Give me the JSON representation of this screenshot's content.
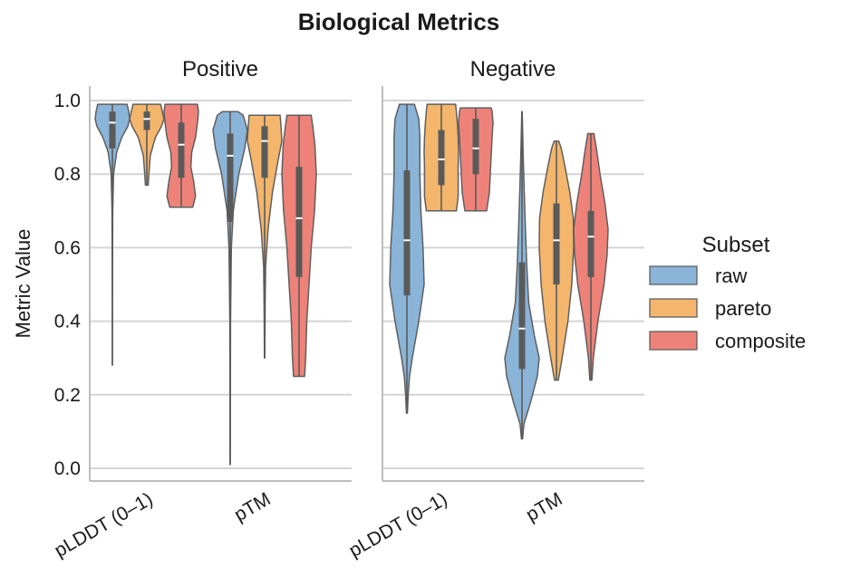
{
  "chart_data": {
    "type": "violin",
    "title": "Biological Metrics",
    "ylabel": "Metric Value",
    "ylim": [
      0,
      1
    ],
    "yticks": [
      0.0,
      0.2,
      0.4,
      0.6,
      0.8,
      1.0
    ],
    "ytick_labels": [
      "0.0",
      "0.2",
      "0.4",
      "0.6",
      "0.8",
      "1.0"
    ],
    "grid": "horizontal",
    "categories": [
      "pLDDT (0–1)",
      "pTM"
    ],
    "legend": {
      "title": "Subset",
      "position": "right",
      "entries": [
        {
          "name": "raw",
          "color": "#8ab4d8"
        },
        {
          "name": "pareto",
          "color": "#f3b66c"
        },
        {
          "name": "composite",
          "color": "#ee8279"
        }
      ]
    },
    "panels": [
      {
        "title": "Positive",
        "groups": [
          {
            "category": "pLDDT (0–1)",
            "subset": "raw",
            "min": 0.28,
            "q1": 0.87,
            "median": 0.94,
            "q3": 0.97,
            "max": 0.99,
            "profile": [
              [
                0.28,
                0.002
              ],
              [
                0.5,
                0.005
              ],
              [
                0.7,
                0.02
              ],
              [
                0.8,
                0.07
              ],
              [
                0.86,
                0.25
              ],
              [
                0.9,
                0.55
              ],
              [
                0.93,
                0.9
              ],
              [
                0.95,
                1.0
              ],
              [
                0.97,
                0.95
              ],
              [
                0.99,
                0.85
              ]
            ]
          },
          {
            "category": "pLDDT (0–1)",
            "subset": "pareto",
            "min": 0.77,
            "q1": 0.92,
            "median": 0.95,
            "q3": 0.97,
            "max": 0.99,
            "profile": [
              [
                0.77,
                0.08
              ],
              [
                0.8,
                0.12
              ],
              [
                0.85,
                0.2
              ],
              [
                0.9,
                0.5
              ],
              [
                0.93,
                0.85
              ],
              [
                0.95,
                1.0
              ],
              [
                0.97,
                0.9
              ],
              [
                0.99,
                0.8
              ]
            ]
          },
          {
            "category": "pLDDT (0–1)",
            "subset": "composite",
            "min": 0.71,
            "q1": 0.79,
            "median": 0.88,
            "q3": 0.94,
            "max": 0.99,
            "profile": [
              [
                0.71,
                0.6
              ],
              [
                0.74,
                0.75
              ],
              [
                0.78,
                0.65
              ],
              [
                0.82,
                0.5
              ],
              [
                0.86,
                0.55
              ],
              [
                0.9,
                0.75
              ],
              [
                0.94,
                0.85
              ],
              [
                0.97,
                0.9
              ],
              [
                0.99,
                0.85
              ]
            ]
          },
          {
            "category": "pTM",
            "subset": "raw",
            "min": 0.01,
            "q1": 0.67,
            "median": 0.85,
            "q3": 0.91,
            "max": 0.97,
            "profile": [
              [
                0.01,
                0.005
              ],
              [
                0.2,
                0.01
              ],
              [
                0.4,
                0.02
              ],
              [
                0.6,
                0.07
              ],
              [
                0.7,
                0.18
              ],
              [
                0.8,
                0.5
              ],
              [
                0.87,
                0.85
              ],
              [
                0.92,
                1.0
              ],
              [
                0.96,
                0.75
              ],
              [
                0.97,
                0.45
              ]
            ]
          },
          {
            "category": "pTM",
            "subset": "pareto",
            "min": 0.3,
            "q1": 0.79,
            "median": 0.89,
            "q3": 0.93,
            "max": 0.96,
            "profile": [
              [
                0.3,
                0.01
              ],
              [
                0.45,
                0.03
              ],
              [
                0.55,
                0.06
              ],
              [
                0.65,
                0.2
              ],
              [
                0.75,
                0.45
              ],
              [
                0.83,
                0.75
              ],
              [
                0.89,
                1.0
              ],
              [
                0.93,
                0.95
              ],
              [
                0.96,
                0.9
              ]
            ]
          },
          {
            "category": "pTM",
            "subset": "composite",
            "min": 0.25,
            "q1": 0.52,
            "median": 0.68,
            "q3": 0.82,
            "max": 0.96,
            "profile": [
              [
                0.25,
                0.25
              ],
              [
                0.3,
                0.3
              ],
              [
                0.4,
                0.35
              ],
              [
                0.5,
                0.45
              ],
              [
                0.6,
                0.55
              ],
              [
                0.7,
                0.7
              ],
              [
                0.8,
                0.78
              ],
              [
                0.88,
                0.72
              ],
              [
                0.93,
                0.62
              ],
              [
                0.96,
                0.55
              ]
            ]
          }
        ]
      },
      {
        "title": "Negative",
        "groups": [
          {
            "category": "pLDDT (0–1)",
            "subset": "raw",
            "min": 0.15,
            "q1": 0.47,
            "median": 0.62,
            "q3": 0.81,
            "max": 0.99,
            "profile": [
              [
                0.15,
                0.02
              ],
              [
                0.2,
                0.06
              ],
              [
                0.25,
                0.12
              ],
              [
                0.3,
                0.25
              ],
              [
                0.4,
                0.55
              ],
              [
                0.5,
                0.8
              ],
              [
                0.6,
                0.75
              ],
              [
                0.7,
                0.65
              ],
              [
                0.8,
                0.6
              ],
              [
                0.9,
                0.6
              ],
              [
                0.95,
                0.55
              ],
              [
                0.99,
                0.35
              ]
            ]
          },
          {
            "category": "pLDDT (0–1)",
            "subset": "pareto",
            "min": 0.7,
            "q1": 0.77,
            "median": 0.84,
            "q3": 0.92,
            "max": 0.99,
            "profile": [
              [
                0.7,
                0.85
              ],
              [
                0.74,
                0.95
              ],
              [
                0.78,
                0.95
              ],
              [
                0.82,
                0.95
              ],
              [
                0.86,
                0.97
              ],
              [
                0.9,
                0.95
              ],
              [
                0.94,
                0.9
              ],
              [
                0.97,
                0.85
              ],
              [
                0.99,
                0.8
              ]
            ]
          },
          {
            "category": "pLDDT (0–1)",
            "subset": "composite",
            "min": 0.7,
            "q1": 0.8,
            "median": 0.87,
            "q3": 0.95,
            "max": 0.98,
            "profile": [
              [
                0.7,
                0.6
              ],
              [
                0.75,
                0.75
              ],
              [
                0.8,
                0.8
              ],
              [
                0.85,
                0.85
              ],
              [
                0.9,
                0.9
              ],
              [
                0.94,
                0.95
              ],
              [
                0.97,
                0.9
              ],
              [
                0.98,
                0.85
              ]
            ]
          },
          {
            "category": "pTM",
            "subset": "raw",
            "min": 0.08,
            "q1": 0.27,
            "median": 0.38,
            "q3": 0.56,
            "max": 0.97,
            "profile": [
              [
                0.08,
                0.03
              ],
              [
                0.12,
                0.1
              ],
              [
                0.18,
                0.45
              ],
              [
                0.25,
                0.8
              ],
              [
                0.3,
                0.9
              ],
              [
                0.36,
                0.65
              ],
              [
                0.45,
                0.35
              ],
              [
                0.55,
                0.25
              ],
              [
                0.65,
                0.18
              ],
              [
                0.75,
                0.12
              ],
              [
                0.85,
                0.06
              ],
              [
                0.95,
                0.02
              ],
              [
                0.97,
                0.01
              ]
            ]
          },
          {
            "category": "pTM",
            "subset": "pareto",
            "min": 0.24,
            "q1": 0.5,
            "median": 0.62,
            "q3": 0.72,
            "max": 0.89,
            "profile": [
              [
                0.24,
                0.1
              ],
              [
                0.3,
                0.3
              ],
              [
                0.4,
                0.6
              ],
              [
                0.5,
                0.8
              ],
              [
                0.6,
                0.9
              ],
              [
                0.68,
                0.88
              ],
              [
                0.75,
                0.7
              ],
              [
                0.82,
                0.45
              ],
              [
                0.87,
                0.25
              ],
              [
                0.89,
                0.12
              ]
            ]
          },
          {
            "category": "pTM",
            "subset": "composite",
            "min": 0.24,
            "q1": 0.52,
            "median": 0.63,
            "q3": 0.7,
            "max": 0.91,
            "profile": [
              [
                0.24,
                0.05
              ],
              [
                0.3,
                0.12
              ],
              [
                0.4,
                0.35
              ],
              [
                0.5,
                0.65
              ],
              [
                0.58,
                0.8
              ],
              [
                0.65,
                0.85
              ],
              [
                0.72,
                0.7
              ],
              [
                0.8,
                0.45
              ],
              [
                0.86,
                0.3
              ],
              [
                0.91,
                0.15
              ]
            ]
          }
        ]
      }
    ]
  }
}
